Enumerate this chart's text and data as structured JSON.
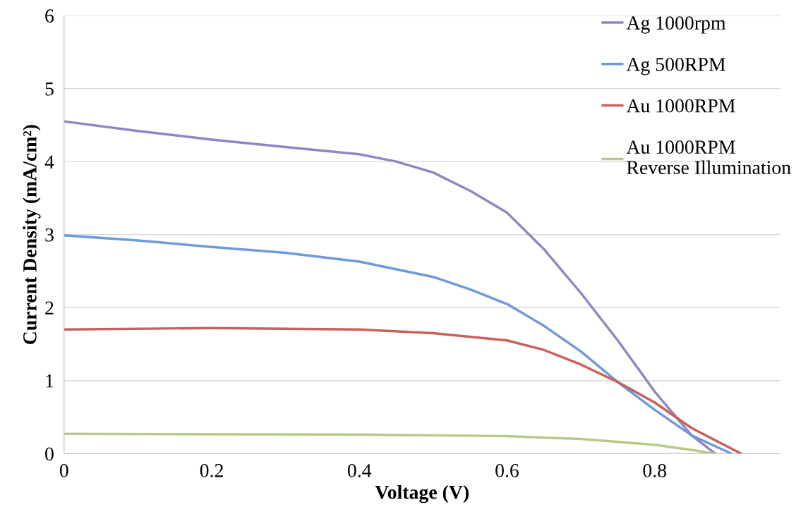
{
  "chart_data": {
    "type": "line",
    "xlabel": "Voltage (V)",
    "ylabel": "Current Density (mA/cm²)",
    "xlim": [
      0,
      0.97
    ],
    "ylim": [
      0,
      6
    ],
    "xticks": [
      0,
      0.2,
      0.4,
      0.6,
      0.8
    ],
    "yticks": [
      0,
      1,
      2,
      3,
      4,
      5,
      6
    ],
    "grid": "y",
    "legend": "top right",
    "marker": "none",
    "line_style": "solid",
    "series": [
      {
        "name": "Ag 1000rpm",
        "color": "#9584c4",
        "x": [
          0,
          0.1,
          0.2,
          0.3,
          0.4,
          0.45,
          0.5,
          0.55,
          0.6,
          0.65,
          0.7,
          0.75,
          0.8,
          0.85,
          0.882
        ],
        "values": [
          4.55,
          4.42,
          4.3,
          4.2,
          4.1,
          4.0,
          3.85,
          3.6,
          3.3,
          2.8,
          2.2,
          1.55,
          0.85,
          0.25,
          0.0
        ]
      },
      {
        "name": "Ag 500RPM",
        "color": "#6f9ad8",
        "x": [
          0,
          0.1,
          0.2,
          0.3,
          0.4,
          0.5,
          0.55,
          0.6,
          0.65,
          0.7,
          0.75,
          0.8,
          0.85,
          0.904
        ],
        "values": [
          2.99,
          2.92,
          2.83,
          2.75,
          2.63,
          2.42,
          2.25,
          2.05,
          1.75,
          1.4,
          0.98,
          0.6,
          0.25,
          0.0
        ]
      },
      {
        "name": "Au 1000RPM",
        "color": "#c8605c",
        "x": [
          0,
          0.2,
          0.4,
          0.5,
          0.6,
          0.65,
          0.7,
          0.75,
          0.8,
          0.85,
          0.917
        ],
        "values": [
          1.7,
          1.72,
          1.7,
          1.65,
          1.55,
          1.42,
          1.22,
          0.98,
          0.7,
          0.35,
          0.0
        ]
      },
      {
        "name": "Au 1000RPM\nReverse Illumination",
        "color": "#b8c98c",
        "x": [
          0,
          0.4,
          0.6,
          0.7,
          0.8,
          0.85,
          0.88
        ],
        "values": [
          0.27,
          0.26,
          0.24,
          0.2,
          0.12,
          0.05,
          0.0
        ]
      }
    ]
  }
}
